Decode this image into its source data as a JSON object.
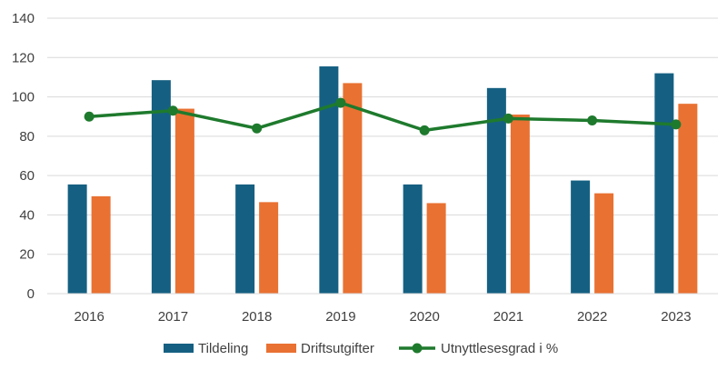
{
  "chart_data": {
    "type": "bar",
    "categories": [
      "2016",
      "2017",
      "2018",
      "2019",
      "2020",
      "2021",
      "2022",
      "2023"
    ],
    "series": [
      {
        "name": "Tildeling",
        "type": "bar",
        "color": "#156082",
        "values": [
          55.5,
          108.5,
          55.5,
          115.5,
          55.5,
          104.5,
          57.5,
          112
        ]
      },
      {
        "name": "Driftsutgifter",
        "type": "bar",
        "color": "#E97132",
        "values": [
          49.5,
          94,
          46.5,
          107,
          46,
          91,
          51,
          96.5
        ]
      },
      {
        "name": "Utnyttlesesgrad i %",
        "type": "line",
        "color": "#1E7A2D",
        "values": [
          90,
          93,
          84,
          97,
          83,
          89,
          88,
          86
        ]
      }
    ],
    "yticks": [
      "0",
      "20",
      "40",
      "60",
      "80",
      "100",
      "120",
      "140"
    ],
    "ylim": [
      0,
      140
    ],
    "grid": true,
    "legend_position": "bottom"
  }
}
